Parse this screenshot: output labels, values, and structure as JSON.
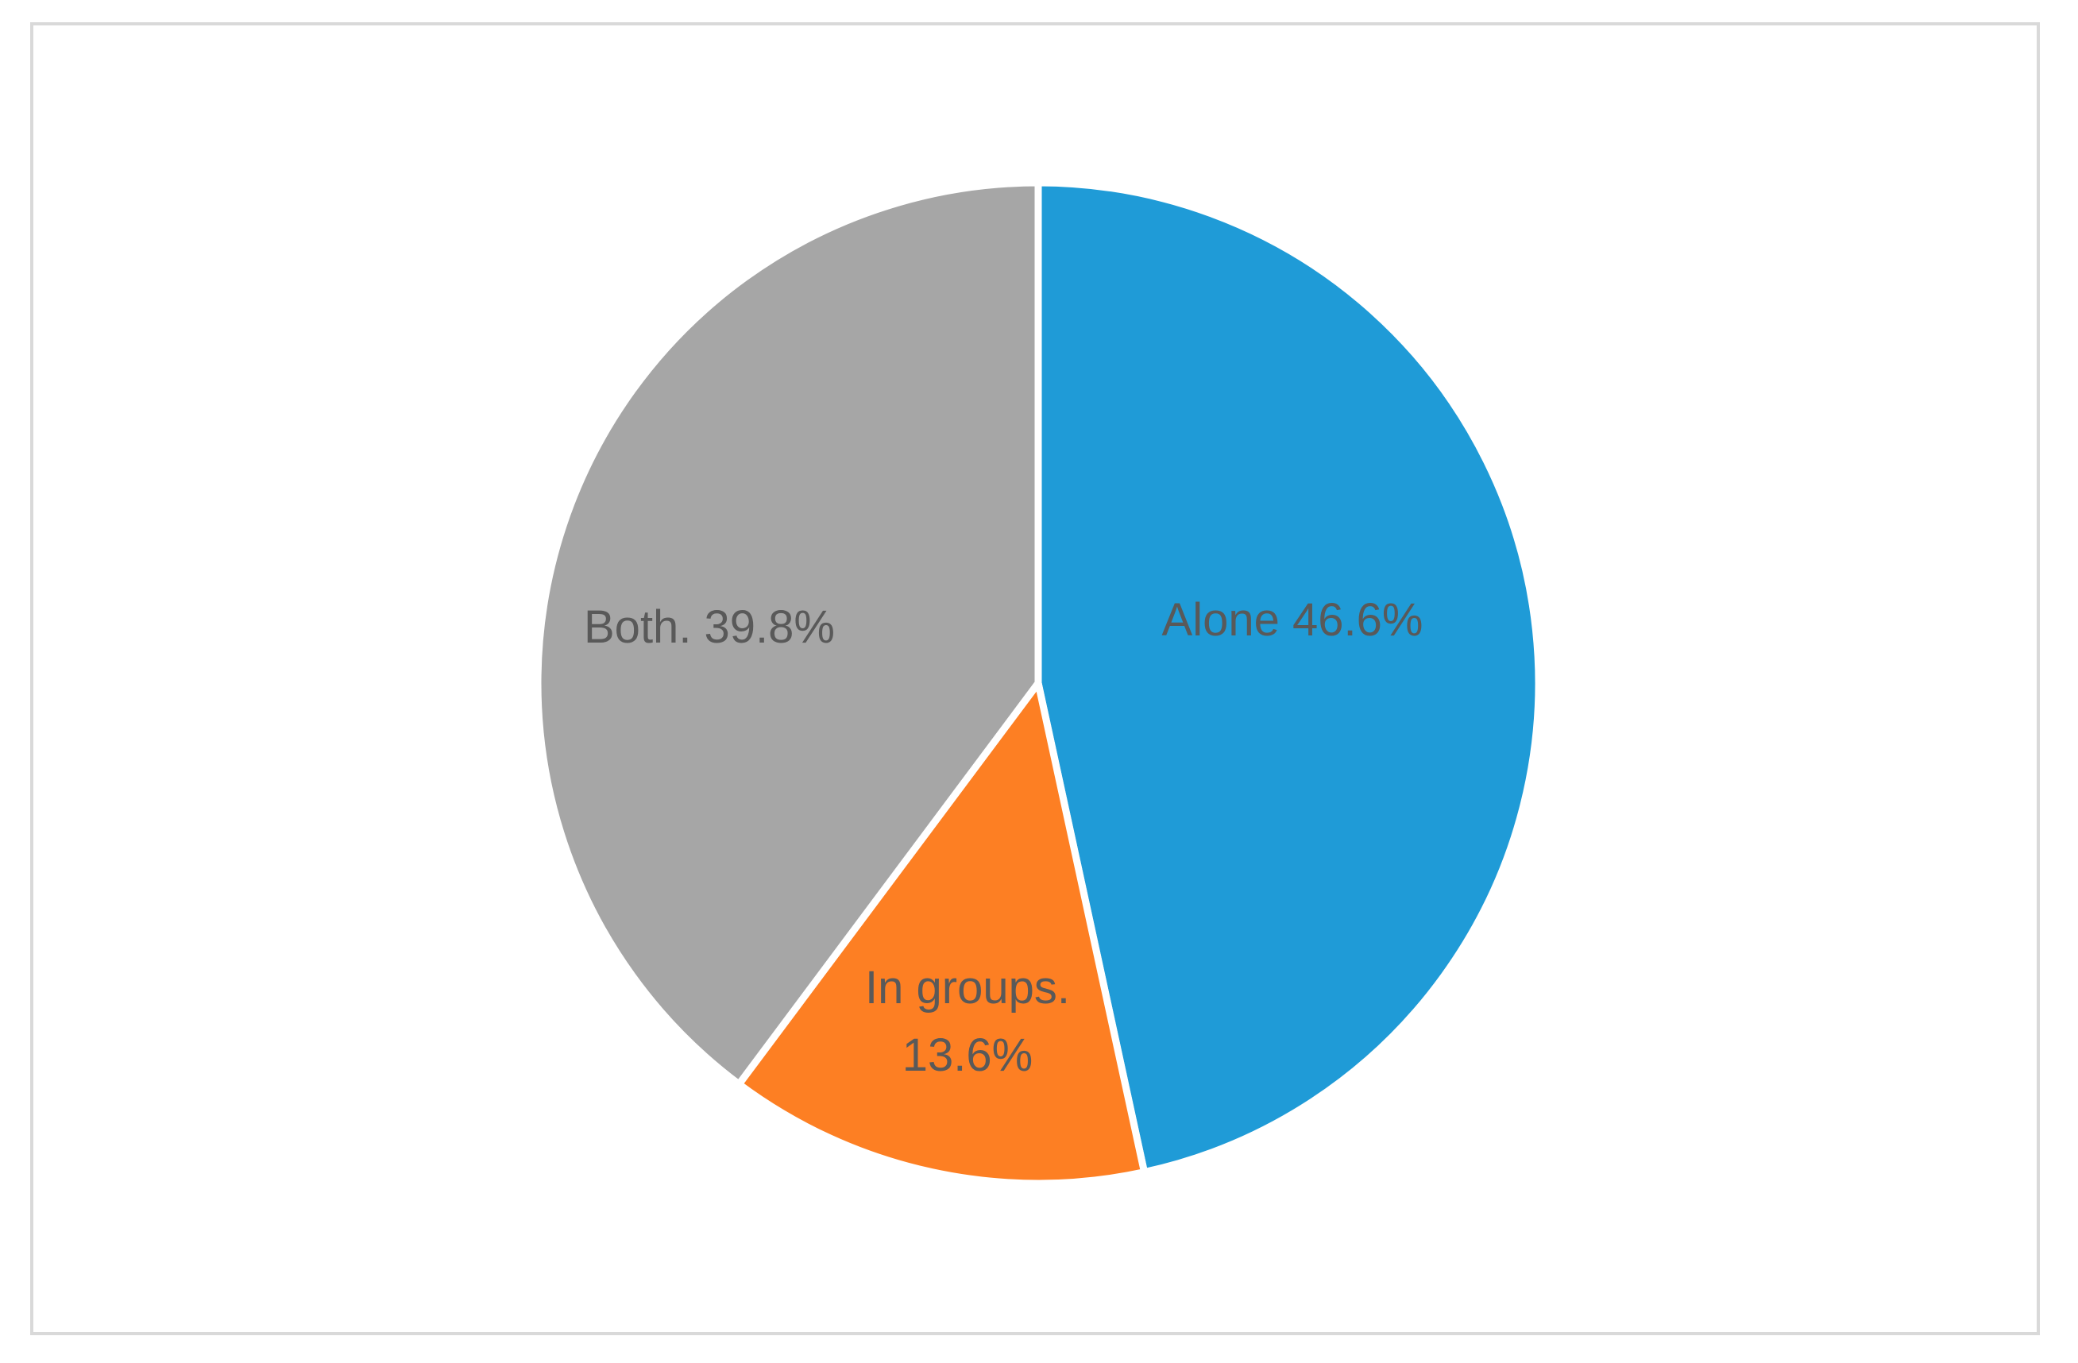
{
  "chart_data": {
    "type": "pie",
    "title": "",
    "slices": [
      {
        "label": "Alone",
        "value": 46.6,
        "display": "Alone 46.6%",
        "color": "#1f9bd7"
      },
      {
        "label": "In groups.",
        "value": 13.6,
        "display_lines": [
          "In groups.",
          "13.6%"
        ],
        "color": "#fd7f23"
      },
      {
        "label": "Both.",
        "value": 39.8,
        "display": "Both. 39.8%",
        "color": "#a6a6a6"
      }
    ],
    "start": "12 o'clock",
    "direction": "clockwise",
    "legend": "none",
    "slice_border_color": "#ffffff"
  }
}
